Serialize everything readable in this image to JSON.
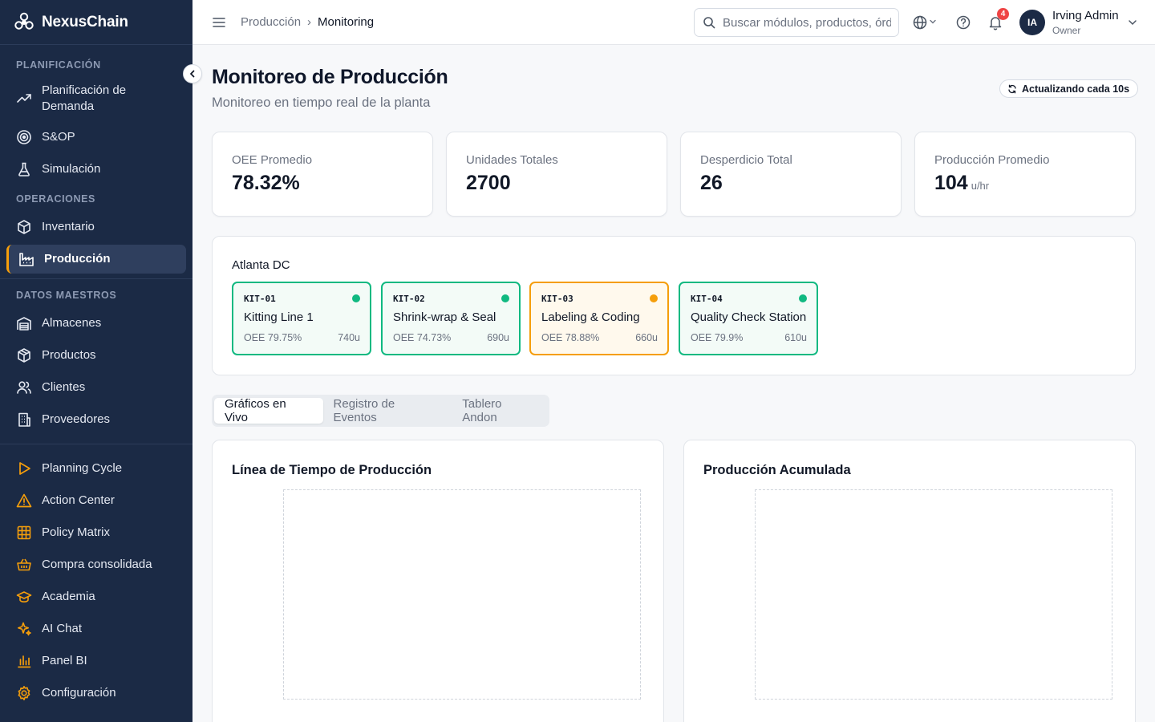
{
  "app": {
    "name": "NexusChain"
  },
  "sidebar": {
    "sections": [
      {
        "label": "PLANIFICACIÓN"
      },
      {
        "label": "OPERACIONES"
      },
      {
        "label": "DATOS MAESTROS"
      }
    ],
    "items": [
      {
        "label": "Planificación de Demanda",
        "line1": "Planificación de",
        "line2": "Demanda",
        "icon": "trending-up-icon"
      },
      {
        "label": "S&OP",
        "icon": "target-icon"
      },
      {
        "label": "Simulación",
        "icon": "flask-icon"
      },
      {
        "label": "Inventario",
        "icon": "box-icon"
      },
      {
        "label": "Producción",
        "icon": "factory-icon",
        "active": true
      },
      {
        "label": "Almacenes",
        "icon": "warehouse-icon"
      },
      {
        "label": "Productos",
        "icon": "package-icon"
      },
      {
        "label": "Clientes",
        "icon": "users-icon"
      },
      {
        "label": "Proveedores",
        "icon": "building-icon"
      },
      {
        "label": "Planning Cycle",
        "icon": "play-icon"
      },
      {
        "label": "Action Center",
        "icon": "alert-triangle-icon"
      },
      {
        "label": "Policy Matrix",
        "icon": "grid-icon"
      },
      {
        "label": "Compra consolidada",
        "icon": "basket-icon"
      },
      {
        "label": "Academia",
        "icon": "graduation-cap-icon"
      },
      {
        "label": "AI Chat",
        "icon": "sparkles-icon"
      },
      {
        "label": "Panel BI",
        "icon": "bar-chart-icon"
      },
      {
        "label": "Configuración",
        "icon": "gear-icon"
      }
    ],
    "accent": "#f59e0b",
    "background": "#1b2a45"
  },
  "header": {
    "breadcrumb": [
      "Producción",
      "Monitoring"
    ],
    "search_placeholder": "Buscar módulos, productos, órdenes...",
    "notifications": "4",
    "user": {
      "initials": "IA",
      "name": "Irving Admin",
      "role": "Owner"
    }
  },
  "page": {
    "title": "Monitoreo de Producción",
    "subtitle": "Monitoreo en tiempo real de la planta",
    "refresh_label": "Actualizando cada 10s"
  },
  "kpis": [
    {
      "label": "OEE Promedio",
      "value": "78.32%",
      "unit": ""
    },
    {
      "label": "Unidades Totales",
      "value": "2700",
      "unit": ""
    },
    {
      "label": "Desperdicio Total",
      "value": "26",
      "unit": ""
    },
    {
      "label": "Producción Promedio",
      "value": "104",
      "unit": "u/hr"
    }
  ],
  "plant": {
    "name": "Atlanta DC",
    "lines": [
      {
        "code": "KIT-01",
        "name": "Kitting Line 1",
        "oee": "OEE 79.75%",
        "units": "740u",
        "status": "running",
        "color": "#10b981"
      },
      {
        "code": "KIT-02",
        "name": "Shrink-wrap & Seal",
        "oee": "OEE 74.73%",
        "units": "690u",
        "status": "running",
        "color": "#10b981"
      },
      {
        "code": "KIT-03",
        "name": "Labeling & Coding",
        "oee": "OEE 78.88%",
        "units": "660u",
        "status": "warning",
        "color": "#f59e0b"
      },
      {
        "code": "KIT-04",
        "name": "Quality Check Station",
        "oee": "OEE 79.9%",
        "units": "610u",
        "status": "running",
        "color": "#10b981"
      }
    ]
  },
  "tabs": [
    {
      "label": "Gráficos en Vivo",
      "active": true
    },
    {
      "label": "Registro de Eventos",
      "active": false
    },
    {
      "label": "Tablero Andon",
      "active": false
    }
  ],
  "charts": [
    {
      "title": "Línea de Tiempo de Producción"
    },
    {
      "title": "Producción Acumulada"
    }
  ]
}
